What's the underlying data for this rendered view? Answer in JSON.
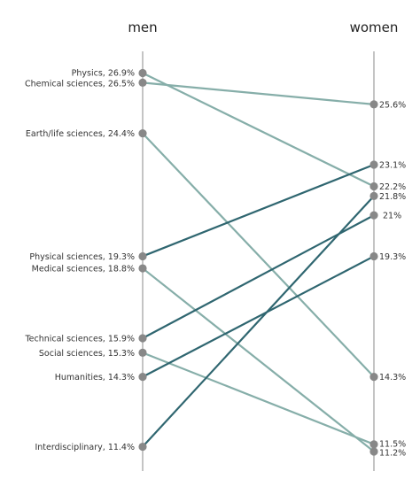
{
  "chart_data": {
    "type": "slope",
    "columns": [
      "men",
      "women"
    ],
    "series": [
      {
        "name": "Physics",
        "men": 26.9,
        "women": 22.2,
        "men_label": "Physics, 26.9%",
        "women_label": "22.2%",
        "color": "#86aea9"
      },
      {
        "name": "Chemical sciences",
        "men": 26.5,
        "women": 25.6,
        "men_label": "Chemical sciences, 26.5%",
        "women_label": "25.6%",
        "color": "#86aea9"
      },
      {
        "name": "Earth/life sciences",
        "men": 24.4,
        "women": 14.3,
        "men_label": "Earth/life sciences, 24.4%",
        "women_label": "14.3%",
        "color": "#86aea9"
      },
      {
        "name": "Physical sciences",
        "men": 19.3,
        "women": 23.1,
        "men_label": "Physical sciences, 19.3%",
        "women_label": "23.1%",
        "color": "#2f6670"
      },
      {
        "name": "Medical sciences",
        "men": 18.8,
        "women": 11.2,
        "men_label": "Medical sciences, 18.8%",
        "women_label": "11.2%",
        "color": "#86aea9"
      },
      {
        "name": "Technical sciences",
        "men": 15.9,
        "women": 21.0,
        "men_label": "Technical sciences, 15.9%",
        "women_label": "21%",
        "color": "#2f6670"
      },
      {
        "name": "Social sciences",
        "men": 15.3,
        "women": 11.5,
        "men_label": "Social sciences, 15.3%",
        "women_label": "11.5%",
        "color": "#86aea9"
      },
      {
        "name": "Humanities",
        "men": 14.3,
        "women": 19.3,
        "men_label": "Humanities, 14.3%",
        "women_label": "19.3%",
        "color": "#2f6670"
      },
      {
        "name": "Interdisciplinary",
        "men": 11.4,
        "women": 21.8,
        "men_label": "Interdisciplinary, 11.4%",
        "women_label": "21.8%",
        "color": "#2f6670"
      }
    ],
    "ylim": [
      11.2,
      26.9
    ],
    "axis_color": "#888888",
    "point_color": "#888888",
    "grid": false,
    "legend": "none"
  }
}
